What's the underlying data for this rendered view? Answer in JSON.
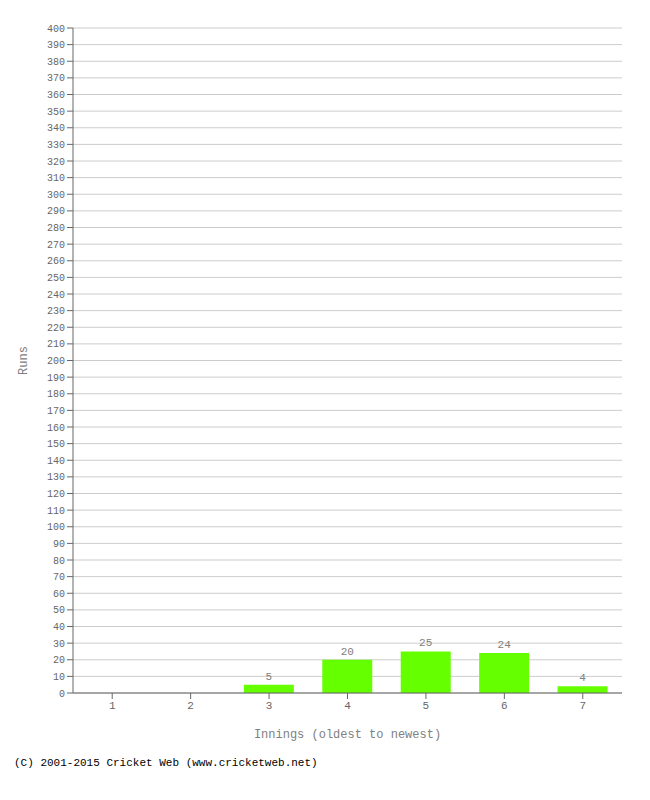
{
  "chart_data": {
    "type": "bar",
    "categories": [
      "1",
      "2",
      "3",
      "4",
      "5",
      "6",
      "7"
    ],
    "values": [
      0,
      0,
      5,
      20,
      25,
      24,
      4
    ],
    "color": "#66ff00",
    "xlabel": "Innings (oldest to newest)",
    "ylabel": "Runs",
    "ylim": [
      0,
      400
    ],
    "yticks": [
      0,
      10,
      20,
      30,
      40,
      50,
      60,
      70,
      80,
      90,
      100,
      110,
      120,
      130,
      140,
      150,
      160,
      170,
      180,
      190,
      200,
      210,
      220,
      230,
      240,
      250,
      260,
      270,
      280,
      290,
      300,
      310,
      320,
      330,
      340,
      350,
      360,
      370,
      380,
      390,
      400
    ],
    "grid": true,
    "data_labels": true,
    "annotations": [
      "(C) 2001-2015 Cricket Web (www.cricketweb.net)"
    ]
  }
}
